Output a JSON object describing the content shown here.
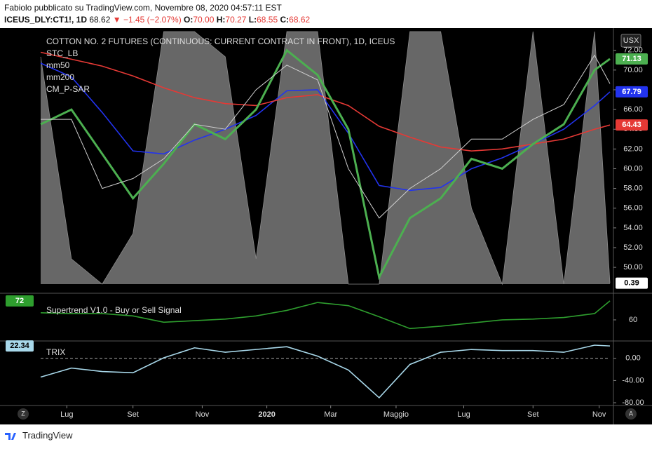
{
  "header": {
    "line1": "Fabiolo pubblicato su TradingView.com, Novembre 08, 2020 04:57:11 EST",
    "symbol": "ICEUS_DLY:CT1!, 1D",
    "last": "68.62",
    "change": "▼ −1.45 (−2.07%)",
    "o_label": "O:",
    "o": "70.00",
    "h_label": "H:",
    "h": "70.27",
    "l_label": "L:",
    "l": "68.55",
    "c_label": "C:",
    "c": "68.62",
    "currency": "USX"
  },
  "footer": "TradingView",
  "buttons": [
    "Z",
    "A"
  ],
  "chart_data": [
    {
      "type": "line",
      "title": "COTTON NO. 2 FUTURES (CONTINUOUS: CURRENT CONTRACT IN FRONT), 1D, ICEUS",
      "x": [
        0,
        4,
        8,
        12,
        16,
        20,
        24,
        28,
        32,
        36,
        40,
        44,
        48,
        52,
        56,
        60,
        64,
        68,
        72,
        74
      ],
      "values": [
        65,
        65,
        58,
        59,
        61,
        64.5,
        64,
        68,
        70.5,
        69,
        60,
        55,
        58,
        60,
        63,
        63,
        65,
        66.5,
        71.5,
        68.62
      ],
      "color": "#cfcfcf",
      "series": [
        {
          "name": "STC_LB",
          "color": "#8a8a8a",
          "axis": "y2",
          "values": [
            90,
            10,
            0,
            20,
            100,
            100,
            90,
            10,
            100,
            100,
            0,
            0,
            100,
            100,
            30,
            0,
            100,
            0,
            100,
            0.39
          ]
        },
        {
          "name": "mm50",
          "color": "#2233ee",
          "values": [
            70.7,
            69.3,
            65.7,
            61.8,
            61.5,
            62.9,
            64,
            65.4,
            67.9,
            68,
            63.6,
            58.3,
            57.8,
            58.1,
            60,
            61.1,
            62.5,
            64,
            66.4,
            67.79
          ]
        },
        {
          "name": "mm200",
          "color": "#e53935",
          "values": [
            71.8,
            71.1,
            70.4,
            69.4,
            68.2,
            67.2,
            66.6,
            66.4,
            67.2,
            67.5,
            66.4,
            64.3,
            63.2,
            62.2,
            61.8,
            62,
            62.5,
            63,
            64,
            64.43
          ]
        },
        {
          "name": "CM_P-SAR",
          "color": "#4caf50",
          "values": [
            64.5,
            66,
            61.5,
            57,
            60.5,
            64.5,
            63,
            66,
            72,
            69.5,
            64,
            49,
            55,
            57,
            61,
            60,
            62.5,
            64.5,
            70,
            71.13
          ]
        }
      ],
      "xlim": [
        0,
        74
      ],
      "ylim": [
        48.3,
        73.9
      ],
      "y2lim": [
        0,
        100
      ],
      "yticks": [
        {
          "value": 50,
          "label": "50.00"
        },
        {
          "value": 52,
          "label": "52.00"
        },
        {
          "value": 54,
          "label": "54.00"
        },
        {
          "value": 56,
          "label": "56.00"
        },
        {
          "value": 58,
          "label": "58.00"
        },
        {
          "value": 60,
          "label": "60.00"
        },
        {
          "value": 62,
          "label": "62.00"
        },
        {
          "value": 64,
          "label": "64.00"
        },
        {
          "value": 66,
          "label": "66.00"
        },
        {
          "value": 68,
          "label": "68.00"
        },
        {
          "value": 70,
          "label": "70.00"
        },
        {
          "value": 72,
          "label": "72.00"
        }
      ]
    },
    {
      "type": "line",
      "title": "Supertrend V1.0 - Buy or Sell Signal",
      "x": [
        0,
        4,
        8,
        12,
        16,
        20,
        24,
        28,
        32,
        36,
        40,
        44,
        48,
        52,
        56,
        60,
        64,
        68,
        72,
        74
      ],
      "series": [
        {
          "color": "#2e9e2e",
          "values": [
            64.5,
            64,
            64,
            62.5,
            58.5,
            59.5,
            60.5,
            62.5,
            66,
            71,
            69,
            62,
            54.5,
            56,
            58,
            60,
            60.5,
            61.5,
            64,
            72
          ]
        }
      ],
      "xlim": [
        0,
        74
      ],
      "ylim": [
        48,
        72.4
      ],
      "yticks": [
        60
      ]
    },
    {
      "type": "line",
      "x": [
        0,
        4,
        8,
        12,
        16,
        20,
        24,
        28,
        32,
        36,
        40,
        44,
        48,
        52,
        56,
        60,
        64,
        68,
        72,
        74
      ],
      "series": [
        {
          "name": "TRIX",
          "color": "#a8d8ea",
          "values": [
            -33.75,
            -17.5,
            -23.75,
            -26,
            1,
            19,
            11,
            16,
            21,
            4,
            -21,
            -71,
            -11,
            11,
            16,
            14,
            14,
            11,
            23.75,
            22.34
          ]
        }
      ],
      "xlim": [
        0,
        74
      ],
      "ylim": [
        -85,
        22.5
      ],
      "yticks": [
        {
          "value": 0,
          "label": "0.00"
        },
        {
          "value": -40,
          "label": "-40.00"
        },
        {
          "value": -80,
          "label": "-80.00"
        }
      ],
      "xticks": [
        {
          "value": 3.4,
          "label": "Lug"
        },
        {
          "value": 12,
          "label": "Set"
        },
        {
          "value": 21,
          "label": "Nov"
        },
        {
          "value": 29.4,
          "label": "2020"
        },
        {
          "value": 37.7,
          "label": "Mar"
        },
        {
          "value": 46.2,
          "label": "Maggio"
        },
        {
          "value": 55,
          "label": "Lug"
        },
        {
          "value": 64,
          "label": "Set"
        },
        {
          "value": 72.6,
          "label": "Nov"
        }
      ]
    }
  ]
}
